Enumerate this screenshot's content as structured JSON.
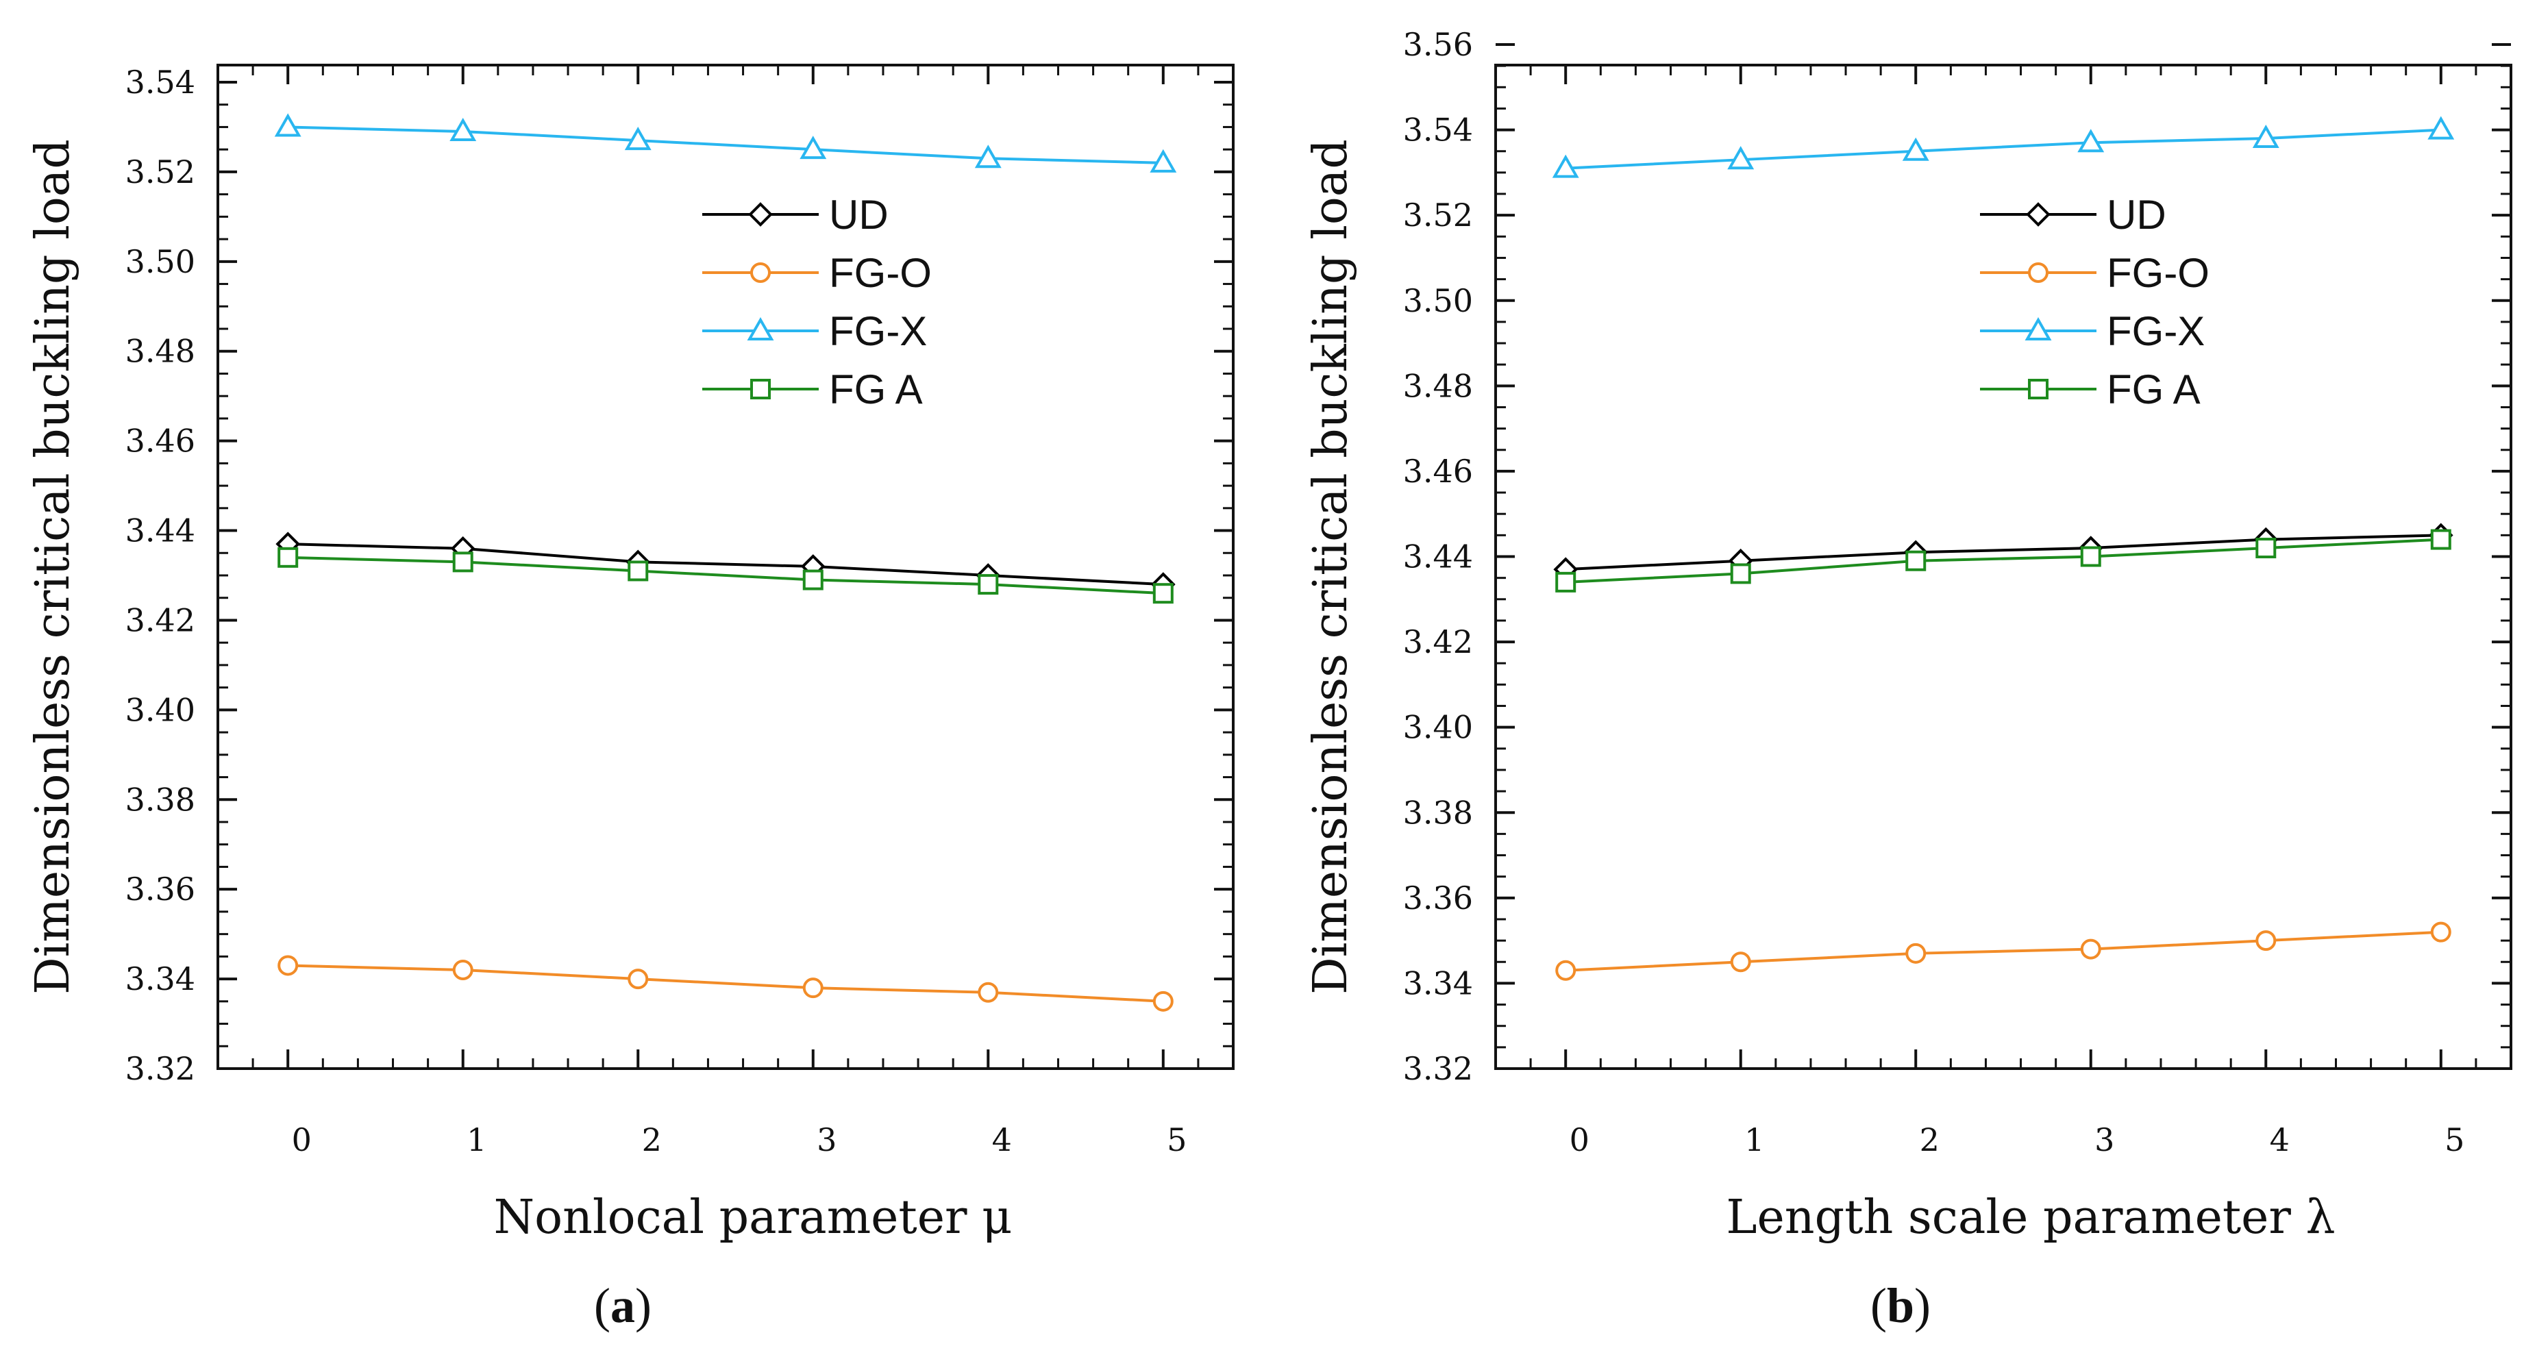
{
  "chart_data": [
    {
      "type": "line",
      "panel_label": "(a)",
      "panel_letter": "a",
      "xlabel": "Nonlocal parameter μ",
      "ylabel": "Dimensionless critical buckling load",
      "x": [
        0,
        1,
        2,
        3,
        4,
        5
      ],
      "xlim": [
        -0.4,
        5.4
      ],
      "ylim": [
        3.32,
        3.545
      ],
      "yticks": [
        "3.32",
        "3.34",
        "3.36",
        "3.38",
        "3.40",
        "3.42",
        "3.44",
        "3.46",
        "3.48",
        "3.50",
        "3.52",
        "3.54"
      ],
      "xticks": [
        "0",
        "1",
        "2",
        "3",
        "4",
        "5"
      ],
      "legend_position": "upper-middle",
      "series": [
        {
          "name": "UD",
          "color": "#000000",
          "marker": "diamond",
          "values": [
            3.437,
            3.436,
            3.433,
            3.432,
            3.43,
            3.428
          ]
        },
        {
          "name": "FG-O",
          "color": "#F28C28",
          "marker": "circle",
          "values": [
            3.343,
            3.342,
            3.34,
            3.338,
            3.337,
            3.335
          ]
        },
        {
          "name": "FG-X",
          "color": "#29B6F0",
          "marker": "triangle",
          "values": [
            3.53,
            3.529,
            3.527,
            3.525,
            3.523,
            3.522
          ]
        },
        {
          "name": "FG A",
          "color": "#1E8C1E",
          "marker": "square",
          "values": [
            3.434,
            3.433,
            3.431,
            3.429,
            3.428,
            3.426
          ]
        }
      ]
    },
    {
      "type": "line",
      "panel_label": "(b)",
      "panel_letter": "b",
      "xlabel": "Length scale parameter λ",
      "ylabel": "Dimensionless critical buckling load",
      "x": [
        0,
        1,
        2,
        3,
        4,
        5
      ],
      "xlim": [
        -0.4,
        5.4
      ],
      "ylim": [
        3.32,
        3.56
      ],
      "yticks": [
        "3.32",
        "3.34",
        "3.36",
        "3.38",
        "3.40",
        "3.42",
        "3.44",
        "3.46",
        "3.48",
        "3.50",
        "3.52",
        "3.54",
        "3.56"
      ],
      "xticks": [
        "0",
        "1",
        "2",
        "3",
        "4",
        "5"
      ],
      "legend_position": "upper-middle",
      "series": [
        {
          "name": "UD",
          "color": "#000000",
          "marker": "diamond",
          "values": [
            3.437,
            3.439,
            3.441,
            3.442,
            3.444,
            3.445
          ]
        },
        {
          "name": "FG-O",
          "color": "#F28C28",
          "marker": "circle",
          "values": [
            3.343,
            3.345,
            3.347,
            3.348,
            3.35,
            3.352
          ]
        },
        {
          "name": "FG-X",
          "color": "#29B6F0",
          "marker": "triangle",
          "values": [
            3.531,
            3.533,
            3.535,
            3.537,
            3.538,
            3.54
          ]
        },
        {
          "name": "FG A",
          "color": "#1E8C1E",
          "marker": "square",
          "values": [
            3.434,
            3.436,
            3.439,
            3.44,
            3.442,
            3.444
          ]
        }
      ]
    }
  ]
}
